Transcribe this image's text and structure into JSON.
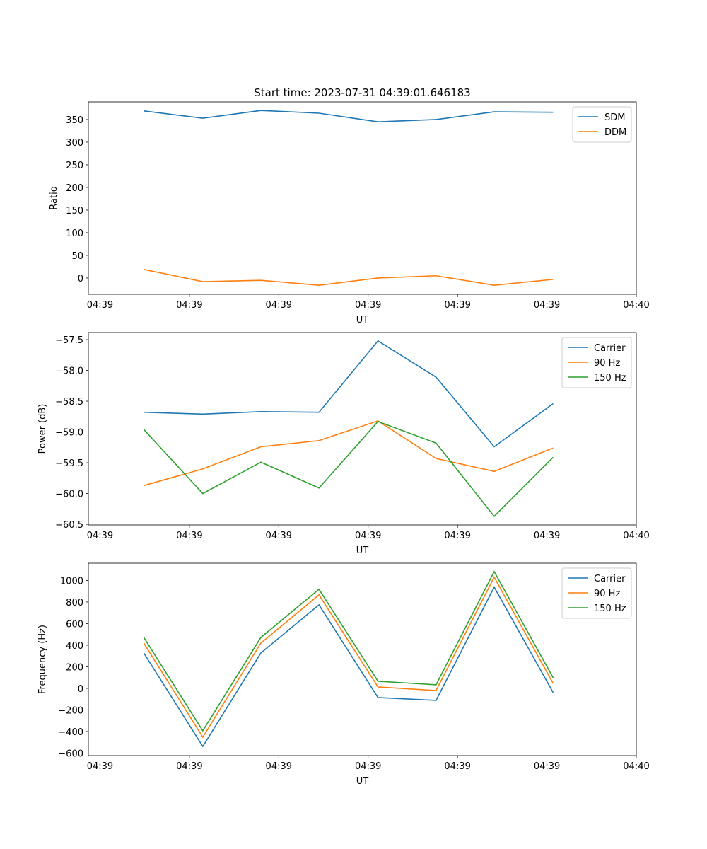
{
  "chart_data": [
    {
      "type": "line",
      "title": "Start time: 2023-07-31 04:39:01.646183",
      "xlabel": "UT",
      "ylabel": "Ratio",
      "x": [
        4.9,
        11.5,
        18.0,
        24.5,
        31.1,
        37.6,
        44.1,
        50.7
      ],
      "xlim": [
        -1.3,
        60
      ],
      "ylim": [
        -36,
        389
      ],
      "xticks": [
        0,
        10,
        20,
        30,
        40,
        50,
        60
      ],
      "xtick_labels": [
        "04:39",
        "04:39",
        "04:39",
        "04:39",
        "04:39",
        "04:39",
        "04:40"
      ],
      "yticks": [
        0,
        50,
        100,
        150,
        200,
        250,
        300,
        350
      ],
      "ytick_labels": [
        "0",
        "50",
        "100",
        "150",
        "200",
        "250",
        "300",
        "350"
      ],
      "legend": "top-right",
      "series": [
        {
          "name": "SDM",
          "color": "#1f77b4",
          "values": [
            369,
            353,
            370,
            364,
            345,
            350,
            367,
            366
          ]
        },
        {
          "name": "DDM",
          "color": "#ff7f0e",
          "values": [
            19,
            -8,
            -5,
            -16,
            0,
            5,
            -16,
            -3
          ]
        }
      ]
    },
    {
      "type": "line",
      "title": "",
      "xlabel": "UT",
      "ylabel": "Power (dB)",
      "x": [
        4.9,
        11.5,
        18.0,
        24.5,
        31.1,
        37.6,
        44.1,
        50.7
      ],
      "xlim": [
        -1.3,
        60
      ],
      "ylim": [
        -60.51,
        -57.385
      ],
      "xticks": [
        0,
        10,
        20,
        30,
        40,
        50,
        60
      ],
      "xtick_labels": [
        "04:39",
        "04:39",
        "04:39",
        "04:39",
        "04:39",
        "04:39",
        "04:40"
      ],
      "yticks": [
        -60.5,
        -60.0,
        -59.5,
        -59.0,
        -58.5,
        -58.0,
        -57.5
      ],
      "ytick_labels": [
        "−60.5",
        "−60.0",
        "−59.5",
        "−59.0",
        "−58.5",
        "−58.0",
        "−57.5"
      ],
      "legend": "top-right",
      "series": [
        {
          "name": "Carrier",
          "color": "#1f77b4",
          "values": [
            -58.68,
            -58.71,
            -58.67,
            -58.68,
            -57.52,
            -58.11,
            -59.24,
            -58.54
          ]
        },
        {
          "name": "90 Hz",
          "color": "#ff7f0e",
          "values": [
            -59.87,
            -59.6,
            -59.24,
            -59.14,
            -58.82,
            -59.43,
            -59.64,
            -59.26
          ]
        },
        {
          "name": "150 Hz",
          "color": "#2ca02c",
          "values": [
            -58.96,
            -60.0,
            -59.49,
            -59.91,
            -58.83,
            -59.18,
            -60.37,
            -59.41
          ]
        }
      ]
    },
    {
      "type": "line",
      "title": "",
      "xlabel": "UT",
      "ylabel": "Frequency (Hz)",
      "x": [
        4.9,
        11.5,
        18.0,
        24.5,
        31.1,
        37.6,
        44.1,
        50.7
      ],
      "xlim": [
        -1.3,
        60
      ],
      "ylim": [
        -623,
        1160
      ],
      "xticks": [
        0,
        10,
        20,
        30,
        40,
        50,
        60
      ],
      "xtick_labels": [
        "04:39",
        "04:39",
        "04:39",
        "04:39",
        "04:39",
        "04:39",
        "04:40"
      ],
      "yticks": [
        -600,
        -400,
        -200,
        0,
        200,
        400,
        600,
        800,
        1000
      ],
      "ytick_labels": [
        "−600",
        "−400",
        "−200",
        "0",
        "200",
        "400",
        "600",
        "800",
        "1000"
      ],
      "legend": "top-right",
      "series": [
        {
          "name": "Carrier",
          "color": "#1f77b4",
          "values": [
            328,
            -538,
            328,
            774,
            -85,
            -111,
            938,
            -39
          ]
        },
        {
          "name": "90 Hz",
          "color": "#ff7f0e",
          "values": [
            420,
            -452,
            420,
            866,
            13,
            -20,
            1030,
            46
          ]
        },
        {
          "name": "150 Hz",
          "color": "#2ca02c",
          "values": [
            472,
            -393,
            472,
            918,
            66,
            33,
            1082,
            98
          ]
        }
      ]
    }
  ]
}
